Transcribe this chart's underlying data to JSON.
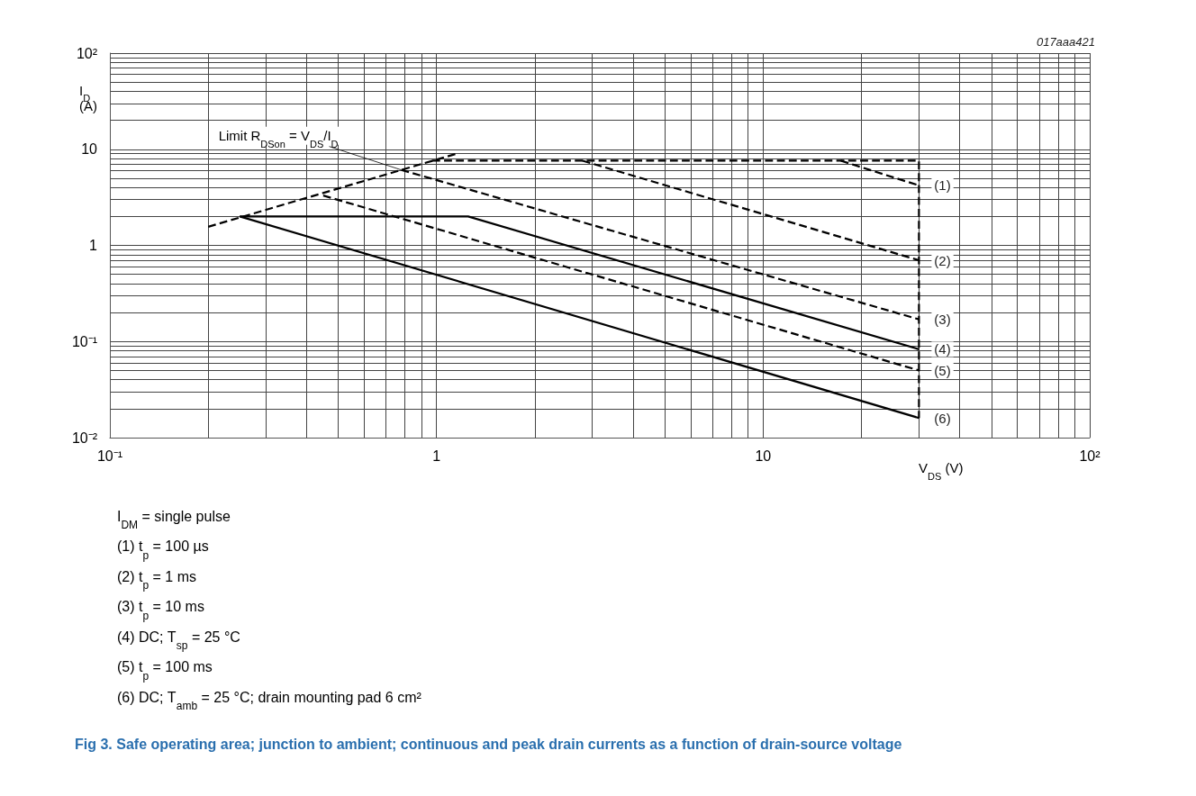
{
  "chart_data": {
    "type": "line",
    "title": "Fig 3. Safe operating area; junction to ambient; continuous and peak drain currents as a function of drain-source voltage",
    "xlabel": "V$_{DS}$ (V)",
    "ylabel": "I$_{D}$ (A)",
    "log": "xy",
    "xlim": [
      0.1,
      100
    ],
    "ylim": [
      0.01,
      100
    ],
    "xticks": [
      {
        "value": 0.1,
        "label": "10⁻¹"
      },
      1,
      10,
      {
        "value": 100,
        "label": "10²"
      }
    ],
    "yticks": [
      {
        "value": 0.01,
        "label": "10⁻²"
      },
      {
        "value": 0.1,
        "label": "10⁻¹"
      },
      1,
      10,
      {
        "value": 100,
        "label": "10²"
      }
    ],
    "grid": true,
    "legend": false,
    "marker": "none",
    "series": [
      {
        "color": "#000000",
        "line_style": "dashed",
        "x": [
          0.2,
          1.16
        ],
        "values": [
          1.56,
          9.05
        ]
      },
      {
        "color": "#000000",
        "line_style": "dashed",
        "x": [
          0.97,
          30,
          30
        ],
        "values": [
          7.6,
          7.6,
          0.016
        ]
      },
      {
        "name": "(1)",
        "color": "#000000",
        "line_style": "dashed",
        "x": [
          17.3,
          30
        ],
        "values": [
          7.6,
          4.2
        ]
      },
      {
        "name": "(2)",
        "color": "#000000",
        "line_style": "dashed",
        "x": [
          2.8,
          30
        ],
        "values": [
          7.6,
          0.7
        ]
      },
      {
        "name": "(3)",
        "color": "#000000",
        "line_style": "dashed",
        "x": [
          0.78,
          30
        ],
        "values": [
          6.1,
          0.17
        ]
      },
      {
        "name": "(4)",
        "color": "#000000",
        "line_style": "solid",
        "x": [
          0.25,
          1.25,
          30
        ],
        "values": [
          2,
          2,
          0.083
        ]
      },
      {
        "name": "(5)",
        "color": "#000000",
        "line_style": "dashed",
        "x": [
          0.45,
          30
        ],
        "values": [
          3.3,
          0.05
        ]
      },
      {
        "name": "(6)",
        "color": "#000000",
        "line_style": "solid",
        "x": [
          0.25,
          30
        ],
        "values": [
          2,
          0.016
        ]
      }
    ],
    "annotations": [
      "017aaa421",
      {
        "text": "Limit R$_{DSon}$ = V$_{DS}$/I$_{D}$",
        "x": 0.78,
        "y": 6.1
      },
      "I$_{DM}$ = single pulse",
      "(1) t$_{p}$ = 100 µs",
      "(2) t$_{p}$ = 1 ms",
      "(3) t$_{p}$ = 10 ms",
      "(4) DC; T$_{sp}$ = 25 °C",
      "(5) t$_{p}$ = 100 ms",
      "(6) DC; T$_{amb}$ = 25 °C; drain mounting pad 6 cm²"
    ]
  }
}
